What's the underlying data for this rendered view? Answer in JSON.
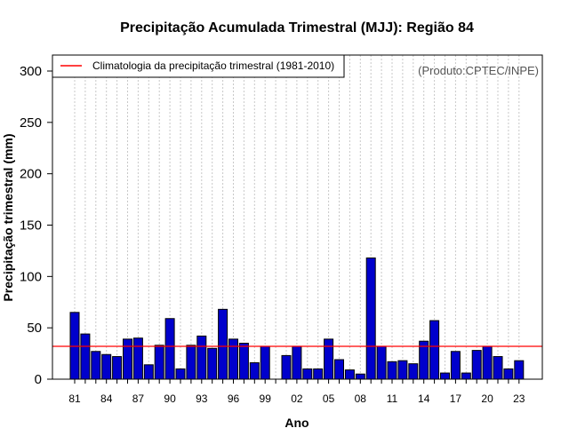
{
  "chart_data": {
    "type": "bar",
    "title": "Precipitação Acumulada Trimestral (MJJ): Região 84",
    "xlabel": "Ano",
    "ylabel": "Precipitação trimestral (mm)",
    "ylim": [
      0,
      310
    ],
    "yticks": [
      0,
      50,
      100,
      150,
      200,
      250,
      300
    ],
    "years": [
      "1981",
      "1982",
      "1983",
      "1984",
      "1985",
      "1986",
      "1987",
      "1988",
      "1989",
      "1990",
      "1991",
      "1992",
      "1993",
      "1994",
      "1995",
      "1996",
      "1997",
      "1998",
      "1999",
      "2000",
      "2001",
      "2002",
      "2003",
      "2004",
      "2005",
      "2006",
      "2007",
      "2008",
      "2009",
      "2010",
      "2011",
      "2012",
      "2013",
      "2014",
      "2015",
      "2016",
      "2017",
      "2018",
      "2019",
      "2020",
      "2021",
      "2022",
      "2023"
    ],
    "values": [
      65,
      44,
      27,
      24,
      22,
      39,
      40,
      14,
      33,
      59,
      10,
      33,
      42,
      30,
      68,
      39,
      35,
      16,
      32,
      0,
      23,
      32,
      10,
      10,
      39,
      19,
      9,
      5,
      118,
      32,
      17,
      18,
      15,
      37,
      57,
      6,
      27,
      6,
      28,
      32,
      22,
      10,
      18
    ],
    "xtick_labels": [
      "81",
      "84",
      "87",
      "90",
      "93",
      "96",
      "99",
      "02",
      "05",
      "08",
      "11",
      "14",
      "17",
      "20",
      "23"
    ],
    "climatology": 32,
    "legend": {
      "label": "Climatologia da precipitação trimestral (1981-2010)",
      "color": "#ff0000",
      "position": "top-left"
    },
    "credit": "(Produto:CPTEC/INPE)",
    "bar_color": "#0000cc",
    "grid": "vertical-dotted"
  }
}
